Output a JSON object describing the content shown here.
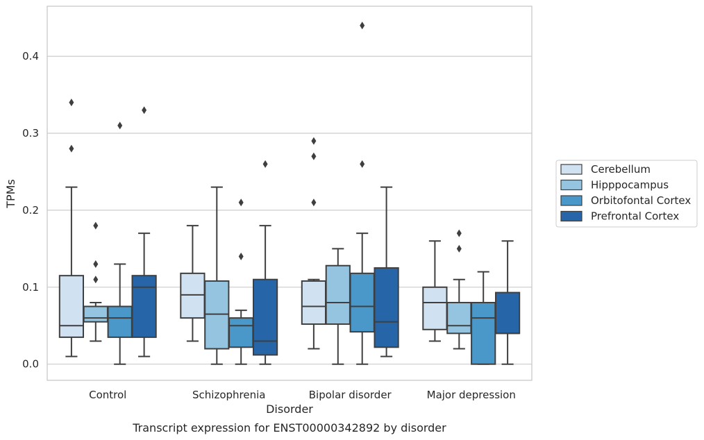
{
  "caption": "Transcript expression for ENST00000342892 by disorder",
  "chart_data": {
    "type": "box",
    "xlabel": "Disorder",
    "ylabel": "TPMs",
    "ylim": [
      -0.021,
      0.465
    ],
    "yticks": [
      0.0,
      0.1,
      0.2,
      0.3,
      0.4
    ],
    "ytick_labels": [
      "0.0",
      "0.1",
      "0.2",
      "0.3",
      "0.4"
    ],
    "grid": "horizontal",
    "legend_position": "right",
    "categories": [
      "Control",
      "Schizophrenia",
      "Bipolar disorder",
      "Major depression"
    ],
    "series": [
      {
        "name": "Cerebellum",
        "color": "#d0e1f2",
        "boxes": [
          {
            "whislo": 0.01,
            "q1": 0.035,
            "med": 0.05,
            "q3": 0.115,
            "whishi": 0.23,
            "fliers": [
              0.28,
              0.34
            ]
          },
          {
            "whislo": 0.03,
            "q1": 0.06,
            "med": 0.09,
            "q3": 0.118,
            "whishi": 0.18,
            "fliers": []
          },
          {
            "whislo": 0.02,
            "q1": 0.052,
            "med": 0.075,
            "q3": 0.108,
            "whishi": 0.11,
            "fliers": [
              0.21,
              0.27,
              0.29
            ]
          },
          {
            "whislo": 0.03,
            "q1": 0.045,
            "med": 0.08,
            "q3": 0.1,
            "whishi": 0.16,
            "fliers": []
          }
        ]
      },
      {
        "name": "Hipppocampus",
        "color": "#94c4df",
        "boxes": [
          {
            "whislo": 0.03,
            "q1": 0.055,
            "med": 0.06,
            "q3": 0.075,
            "whishi": 0.08,
            "fliers": [
              0.11,
              0.13,
              0.18
            ]
          },
          {
            "whislo": 0.0,
            "q1": 0.02,
            "med": 0.065,
            "q3": 0.108,
            "whishi": 0.23,
            "fliers": []
          },
          {
            "whislo": 0.0,
            "q1": 0.052,
            "med": 0.08,
            "q3": 0.128,
            "whishi": 0.15,
            "fliers": []
          },
          {
            "whislo": 0.02,
            "q1": 0.04,
            "med": 0.05,
            "q3": 0.08,
            "whishi": 0.11,
            "fliers": [
              0.15,
              0.17
            ]
          }
        ]
      },
      {
        "name": "Orbitofontal Cortex",
        "color": "#4a98c9",
        "boxes": [
          {
            "whislo": 0.0,
            "q1": 0.035,
            "med": 0.06,
            "q3": 0.075,
            "whishi": 0.13,
            "fliers": [
              0.31
            ]
          },
          {
            "whislo": 0.0,
            "q1": 0.022,
            "med": 0.05,
            "q3": 0.06,
            "whishi": 0.07,
            "fliers": [
              0.14,
              0.21
            ]
          },
          {
            "whislo": 0.0,
            "q1": 0.042,
            "med": 0.075,
            "q3": 0.118,
            "whishi": 0.17,
            "fliers": [
              0.26,
              0.44
            ]
          },
          {
            "whislo": 0.0,
            "q1": 0.0,
            "med": 0.06,
            "q3": 0.08,
            "whishi": 0.12,
            "fliers": []
          }
        ]
      },
      {
        "name": "Prefrontal Cortex",
        "color": "#2666a8",
        "boxes": [
          {
            "whislo": 0.01,
            "q1": 0.035,
            "med": 0.1,
            "q3": 0.115,
            "whishi": 0.17,
            "fliers": [
              0.33
            ]
          },
          {
            "whislo": 0.0,
            "q1": 0.012,
            "med": 0.03,
            "q3": 0.11,
            "whishi": 0.18,
            "fliers": [
              0.26
            ]
          },
          {
            "whislo": 0.01,
            "q1": 0.022,
            "med": 0.055,
            "q3": 0.125,
            "whishi": 0.23,
            "fliers": []
          },
          {
            "whislo": 0.0,
            "q1": 0.04,
            "med": 0.04,
            "q3": 0.093,
            "whishi": 0.16,
            "fliers": []
          }
        ]
      }
    ]
  }
}
